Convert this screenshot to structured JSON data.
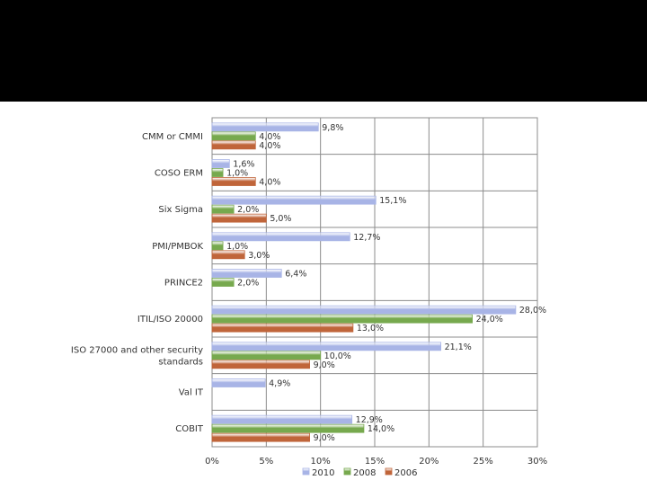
{
  "header": {
    "background": "#000000"
  },
  "chart_data": {
    "type": "bar",
    "orientation": "horizontal",
    "grouped": true,
    "categories": [
      "CMM or CMMI",
      "COSO ERM",
      "Six Sigma",
      "PMI/PMBOK",
      "PRINCE2",
      "ITIL/ISO 20000",
      "ISO 27000 and other security standards",
      "Val IT",
      "COBIT"
    ],
    "series": [
      {
        "name": "2010",
        "color": "#a8b4e6",
        "values": [
          9.8,
          1.6,
          15.1,
          12.7,
          6.4,
          28.0,
          21.1,
          4.9,
          12.9
        ],
        "labels": [
          "9,8%",
          "1,6%",
          "15,1%",
          "12,7%",
          "6,4%",
          "28,0%",
          "21,1%",
          "4,9%",
          "12,9%"
        ]
      },
      {
        "name": "2008",
        "color": "#77a94e",
        "values": [
          4.0,
          1.0,
          2.0,
          1.0,
          2.0,
          24.0,
          10.0,
          null,
          14.0
        ],
        "labels": [
          "4,0%",
          "1,0%",
          "2,0%",
          "1,0%",
          "2,0%",
          "24,0%",
          "10,0%",
          "",
          "14,0%"
        ]
      },
      {
        "name": "2006",
        "color": "#c0653a",
        "values": [
          4.0,
          4.0,
          5.0,
          3.0,
          null,
          13.0,
          9.0,
          null,
          9.0
        ],
        "labels": [
          "4,0%",
          "4,0%",
          "5,0%",
          "3,0%",
          "",
          "13,0%",
          "9,0%",
          "",
          "9,0%"
        ]
      }
    ],
    "xlim": [
      0,
      30
    ],
    "x_ticks": [
      0,
      5,
      10,
      15,
      20,
      25,
      30
    ],
    "x_tick_labels": [
      "0%",
      "5%",
      "10%",
      "15%",
      "20%",
      "25%",
      "30%"
    ],
    "grid": true,
    "legend": "bottom"
  }
}
